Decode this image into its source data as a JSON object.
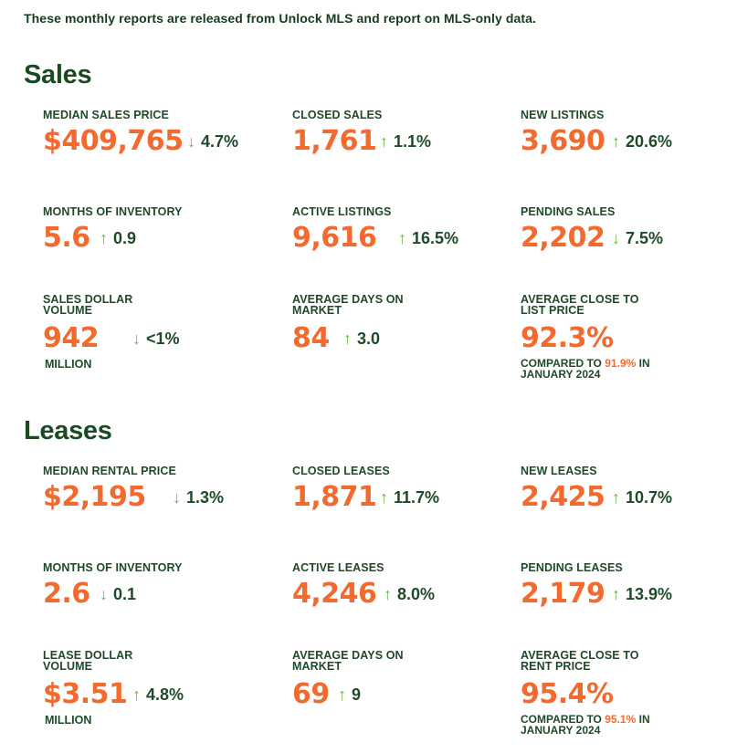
{
  "intro": "These monthly reports are released from Unlock MLS and report on MLS-only data.",
  "sales": {
    "title": "Sales",
    "median_sales_price": {
      "label": "MEDIAN SALES PRICE",
      "value": "$409,765",
      "arrow": "↓",
      "change": "4.7%"
    },
    "closed_sales": {
      "label": "CLOSED SALES",
      "value": "1,761",
      "arrow": "↑",
      "change": "1.1%"
    },
    "new_listings": {
      "label": "NEW LISTINGS",
      "value": "3,690",
      "arrow": "↑",
      "change": "20.6%"
    },
    "months_of_inventory": {
      "label": "MONTHS OF INVENTORY",
      "value": "5.6",
      "arrow": "↑",
      "change": "0.9"
    },
    "active_listings": {
      "label": "ACTIVE LISTINGS",
      "value": "9,616",
      "arrow": "↑",
      "change": "16.5%"
    },
    "pending_sales": {
      "label": "PENDING SALES",
      "value": "2,202",
      "arrow": "↓",
      "change": "7.5%"
    },
    "sales_dollar_volume": {
      "label_line1": "SALES DOLLAR",
      "label_line2": "VOLUME",
      "value": "942",
      "arrow": "↓",
      "change": "<1%",
      "unit": "MILLION"
    },
    "average_days_on_market": {
      "label_line1": "AVERAGE DAYS ON",
      "label_line2": "MARKET",
      "value": "84",
      "arrow": "↑",
      "change": "3.0"
    },
    "average_close_to_list": {
      "label_line1": "AVERAGE CLOSE TO",
      "label_line2": "LIST PRICE",
      "value": "92.3%",
      "compared_prefix": "COMPARED TO",
      "compared_value": "91.9%",
      "compared_suffix": "IN",
      "compared_period": "JANUARY 2024"
    }
  },
  "leases": {
    "title": "Leases",
    "median_rental_price": {
      "label": "MEDIAN RENTAL PRICE",
      "value": "$2,195",
      "arrow": "↓",
      "change": "1.3%"
    },
    "closed_leases": {
      "label": "CLOSED LEASES",
      "value": "1,871",
      "arrow": "↑",
      "change": "11.7%"
    },
    "new_leases": {
      "label": "NEW LEASES",
      "value": "2,425",
      "arrow": "↑",
      "change": "10.7%"
    },
    "months_of_inventory": {
      "label": "MONTHS OF INVENTORY",
      "value": "2.6",
      "arrow": "↓",
      "change": "0.1"
    },
    "active_leases": {
      "label": "ACTIVE LEASES",
      "value": "4,246",
      "arrow": "↑",
      "change": "8.0%"
    },
    "pending_leases": {
      "label": "PENDING LEASES",
      "value": "2,179",
      "arrow": "↑",
      "change": "13.9%"
    },
    "lease_dollar_volume": {
      "label_line1": "LEASE DOLLAR",
      "label_line2": "VOLUME",
      "value": "$3.51",
      "arrow": "↑",
      "change": "4.8%",
      "unit": "MILLION"
    },
    "average_days_on_market": {
      "label_line1": "AVERAGE DAYS ON",
      "label_line2": "MARKET",
      "value": "69",
      "arrow": "↑",
      "change": "9"
    },
    "average_close_to_rent": {
      "label_line1": "AVERAGE CLOSE TO",
      "label_line2": "RENT PRICE",
      "value": "95.4%",
      "compared_prefix": "COMPARED TO",
      "compared_value": "95.1%",
      "compared_suffix": "IN",
      "compared_period": "JANUARY 2024"
    }
  },
  "colors": {
    "accent_orange": "#f26a2e",
    "dark_green": "#1b4a22",
    "arrow_green": "#6bb83a"
  }
}
